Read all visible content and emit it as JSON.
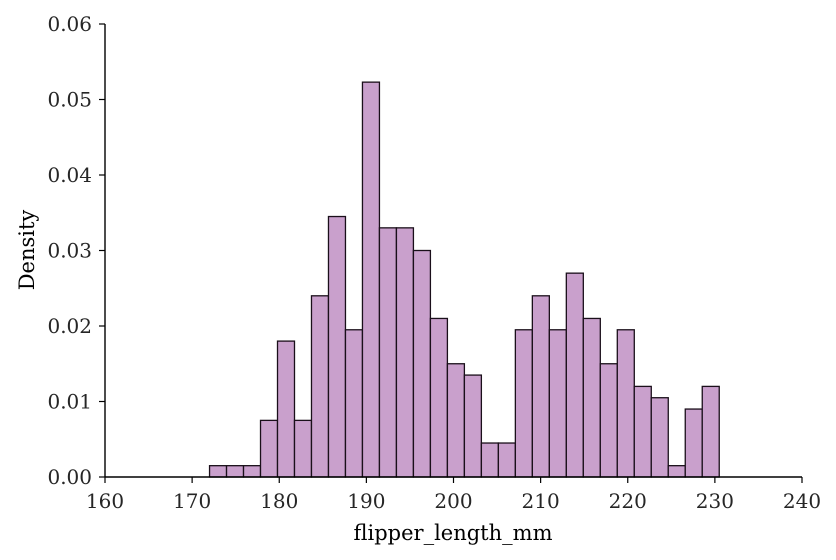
{
  "chart_data": {
    "type": "bar",
    "xlabel": "flipper_length_mm",
    "ylabel": "Density",
    "xlim": [
      160,
      240
    ],
    "ylim": [
      0,
      0.06
    ],
    "grid": false,
    "bar_color": "#c9a0cc",
    "edge_color": "#1a0f1a",
    "x_ticks": [
      "160",
      "170",
      "180",
      "190",
      "200",
      "210",
      "220",
      "230",
      "240"
    ],
    "y_ticks": [
      "0.00",
      "0.01",
      "0.02",
      "0.03",
      "0.04",
      "0.05",
      "0.06"
    ],
    "bin_start": 172,
    "bin_width": 1.95,
    "values": [
      0.0015,
      0.0015,
      0.0015,
      0.0075,
      0.018,
      0.0075,
      0.024,
      0.0345,
      0.0195,
      0.0523,
      0.033,
      0.033,
      0.03,
      0.021,
      0.015,
      0.0135,
      0.0045,
      0.0045,
      0.0195,
      0.024,
      0.0195,
      0.027,
      0.021,
      0.015,
      0.0195,
      0.012,
      0.0105,
      0.0015,
      0.009,
      0.012
    ]
  }
}
